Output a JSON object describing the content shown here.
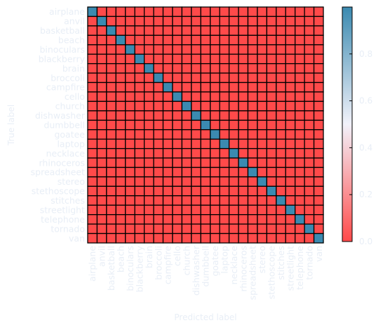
{
  "chart_data": {
    "type": "heatmap",
    "title": "",
    "xlabel": "Predicted label",
    "ylabel": "True label",
    "categories": [
      "airplane",
      "anvil",
      "basketball",
      "beach",
      "binoculars",
      "blackberry",
      "brain",
      "broccoli",
      "campfire",
      "cello",
      "church",
      "dishwasher",
      "dumbbell",
      "goatee",
      "laptop",
      "necklace",
      "rhinoceros",
      "spreadsheet",
      "stereo",
      "stethoscope",
      "stitches",
      "streetlight",
      "telephone",
      "tornado",
      "van"
    ],
    "matrix_description": "identity",
    "diagonal_value": 1.0,
    "off_diagonal_value": 0.0,
    "colorbar": {
      "ticks": [
        "0.0",
        "0.2",
        "0.4",
        "0.6",
        "0.8"
      ],
      "range": [
        0,
        1
      ],
      "colors": {
        "low": "#ff4a4a",
        "mid": "#f2f2fa",
        "high": "#3b8ab0"
      }
    },
    "label_color": "#e8eef6",
    "cell_border": "#000000",
    "grid": true,
    "legend": "colorbar-right"
  }
}
